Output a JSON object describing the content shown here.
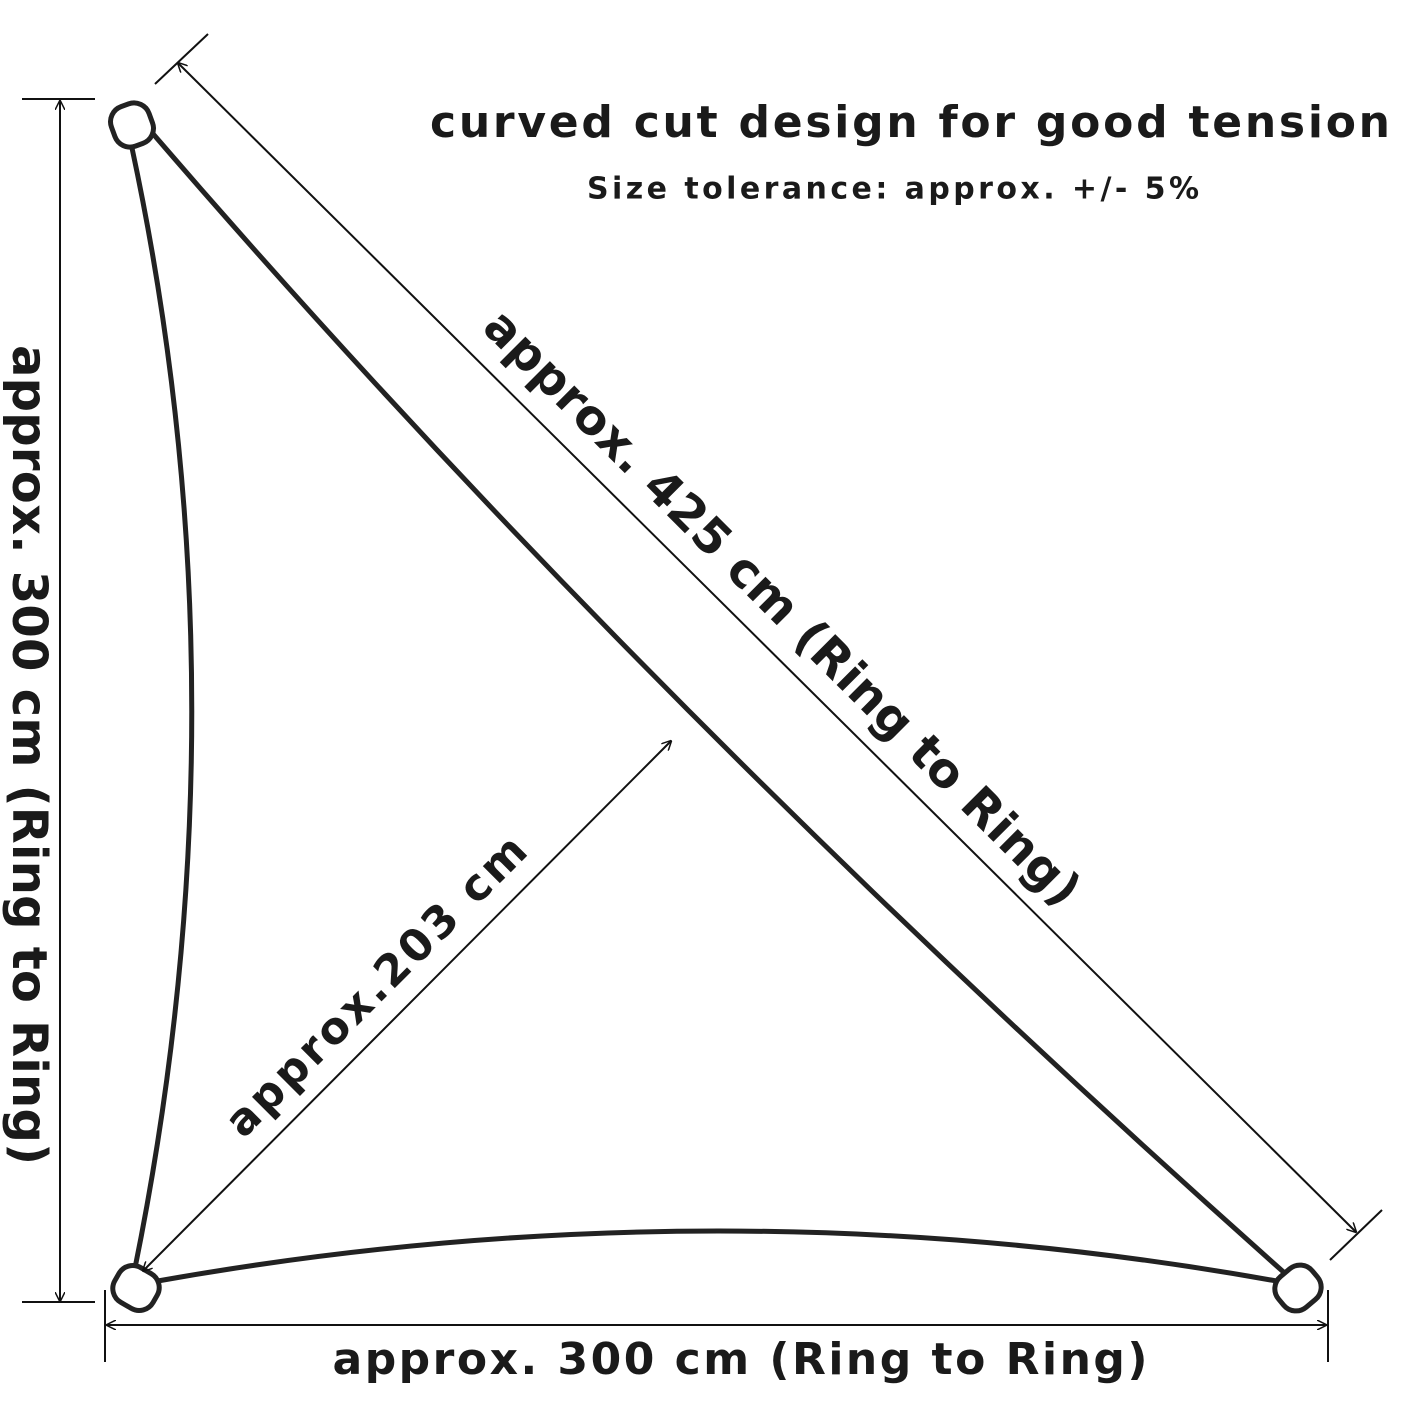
{
  "header": {
    "title": "curved cut design for good tension",
    "subtitle": "Size tolerance: approx. +/- 5%"
  },
  "dimensions": {
    "diagonal": "approx. 425 cm (Ring to Ring)",
    "left": "approx. 300 cm (Ring to Ring)",
    "height": "approx.203 cm",
    "bottom": "approx. 300 cm (Ring to Ring)"
  }
}
